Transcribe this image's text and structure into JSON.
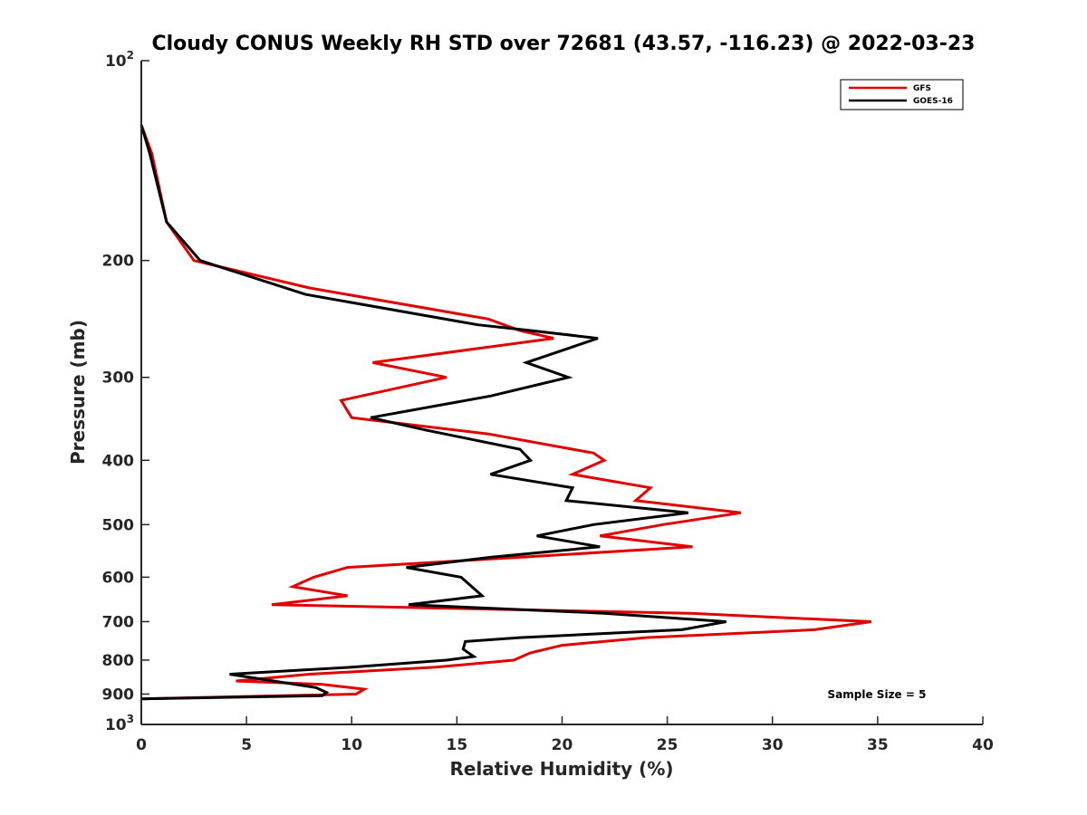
{
  "chart_data": {
    "type": "line",
    "title": "Cloudy CONUS Weekly RH STD over 72681 (43.57, -116.23) @ 2022-03-23",
    "xlabel": "Relative Humidity (%)",
    "ylabel": "Pressure (mb)",
    "xlim": [
      0,
      40
    ],
    "ylim": [
      100,
      1000
    ],
    "y_scale": "log",
    "y_reversed": true,
    "x_ticks": [
      "0",
      "5",
      "10",
      "15",
      "20",
      "25",
      "30",
      "35",
      "40"
    ],
    "y_ticks": [
      {
        "value": 100,
        "base": "10",
        "exp": "2"
      },
      {
        "value": 200,
        "label": "200"
      },
      {
        "value": 300,
        "label": "300"
      },
      {
        "value": 400,
        "label": "400"
      },
      {
        "value": 500,
        "label": "500"
      },
      {
        "value": 600,
        "label": "600"
      },
      {
        "value": 700,
        "label": "700"
      },
      {
        "value": 800,
        "label": "800"
      },
      {
        "value": 900,
        "label": "900"
      },
      {
        "value": 1000,
        "base": "10",
        "exp": "3"
      }
    ],
    "grid": false,
    "legend_position": "top-right",
    "annotation": "Sample Size = 5",
    "series": [
      {
        "name": "GFS",
        "color": "#e00000",
        "points": [
          [
            0.0,
            125
          ],
          [
            0.5,
            138
          ],
          [
            1.2,
            175
          ],
          [
            2.5,
            200
          ],
          [
            8.0,
            220
          ],
          [
            16.5,
            245
          ],
          [
            18.0,
            255
          ],
          [
            19.6,
            262
          ],
          [
            11.0,
            285
          ],
          [
            14.5,
            300
          ],
          [
            9.5,
            325
          ],
          [
            10.0,
            345
          ],
          [
            16.5,
            365
          ],
          [
            21.5,
            390
          ],
          [
            22.0,
            400
          ],
          [
            20.5,
            420
          ],
          [
            24.2,
            440
          ],
          [
            23.5,
            460
          ],
          [
            28.5,
            480
          ],
          [
            24.8,
            500
          ],
          [
            21.8,
            520
          ],
          [
            26.2,
            540
          ],
          [
            18.0,
            560
          ],
          [
            9.8,
            580
          ],
          [
            8.2,
            600
          ],
          [
            7.2,
            620
          ],
          [
            9.8,
            640
          ],
          [
            6.2,
            660
          ],
          [
            26.0,
            680
          ],
          [
            34.7,
            700
          ],
          [
            32.0,
            720
          ],
          [
            24.0,
            740
          ],
          [
            20.0,
            760
          ],
          [
            18.5,
            780
          ],
          [
            17.7,
            800
          ],
          [
            14.0,
            820
          ],
          [
            8.0,
            840
          ],
          [
            4.5,
            860
          ],
          [
            8.6,
            870
          ],
          [
            10.6,
            885
          ],
          [
            10.2,
            900
          ],
          [
            0.0,
            915
          ]
        ]
      },
      {
        "name": "GOES-16",
        "color": "#000000",
        "points": [
          [
            0.0,
            125
          ],
          [
            0.4,
            138
          ],
          [
            1.2,
            175
          ],
          [
            2.8,
            200
          ],
          [
            7.8,
            225
          ],
          [
            16.0,
            250
          ],
          [
            18.5,
            255
          ],
          [
            21.7,
            262
          ],
          [
            18.3,
            285
          ],
          [
            20.3,
            300
          ],
          [
            16.6,
            320
          ],
          [
            10.9,
            345
          ],
          [
            13.5,
            360
          ],
          [
            18.0,
            385
          ],
          [
            18.5,
            400
          ],
          [
            16.6,
            420
          ],
          [
            20.5,
            440
          ],
          [
            20.2,
            460
          ],
          [
            26.0,
            480
          ],
          [
            21.5,
            500
          ],
          [
            18.8,
            520
          ],
          [
            21.8,
            540
          ],
          [
            16.6,
            560
          ],
          [
            12.6,
            580
          ],
          [
            15.2,
            600
          ],
          [
            16.2,
            640
          ],
          [
            12.7,
            660
          ],
          [
            22.0,
            680
          ],
          [
            27.8,
            700
          ],
          [
            25.7,
            720
          ],
          [
            18.0,
            740
          ],
          [
            15.4,
            750
          ],
          [
            15.3,
            770
          ],
          [
            15.8,
            790
          ],
          [
            14.5,
            800
          ],
          [
            10.0,
            820
          ],
          [
            4.2,
            840
          ],
          [
            8.3,
            880
          ],
          [
            8.8,
            895
          ],
          [
            8.6,
            905
          ],
          [
            0.0,
            915
          ]
        ]
      }
    ]
  }
}
